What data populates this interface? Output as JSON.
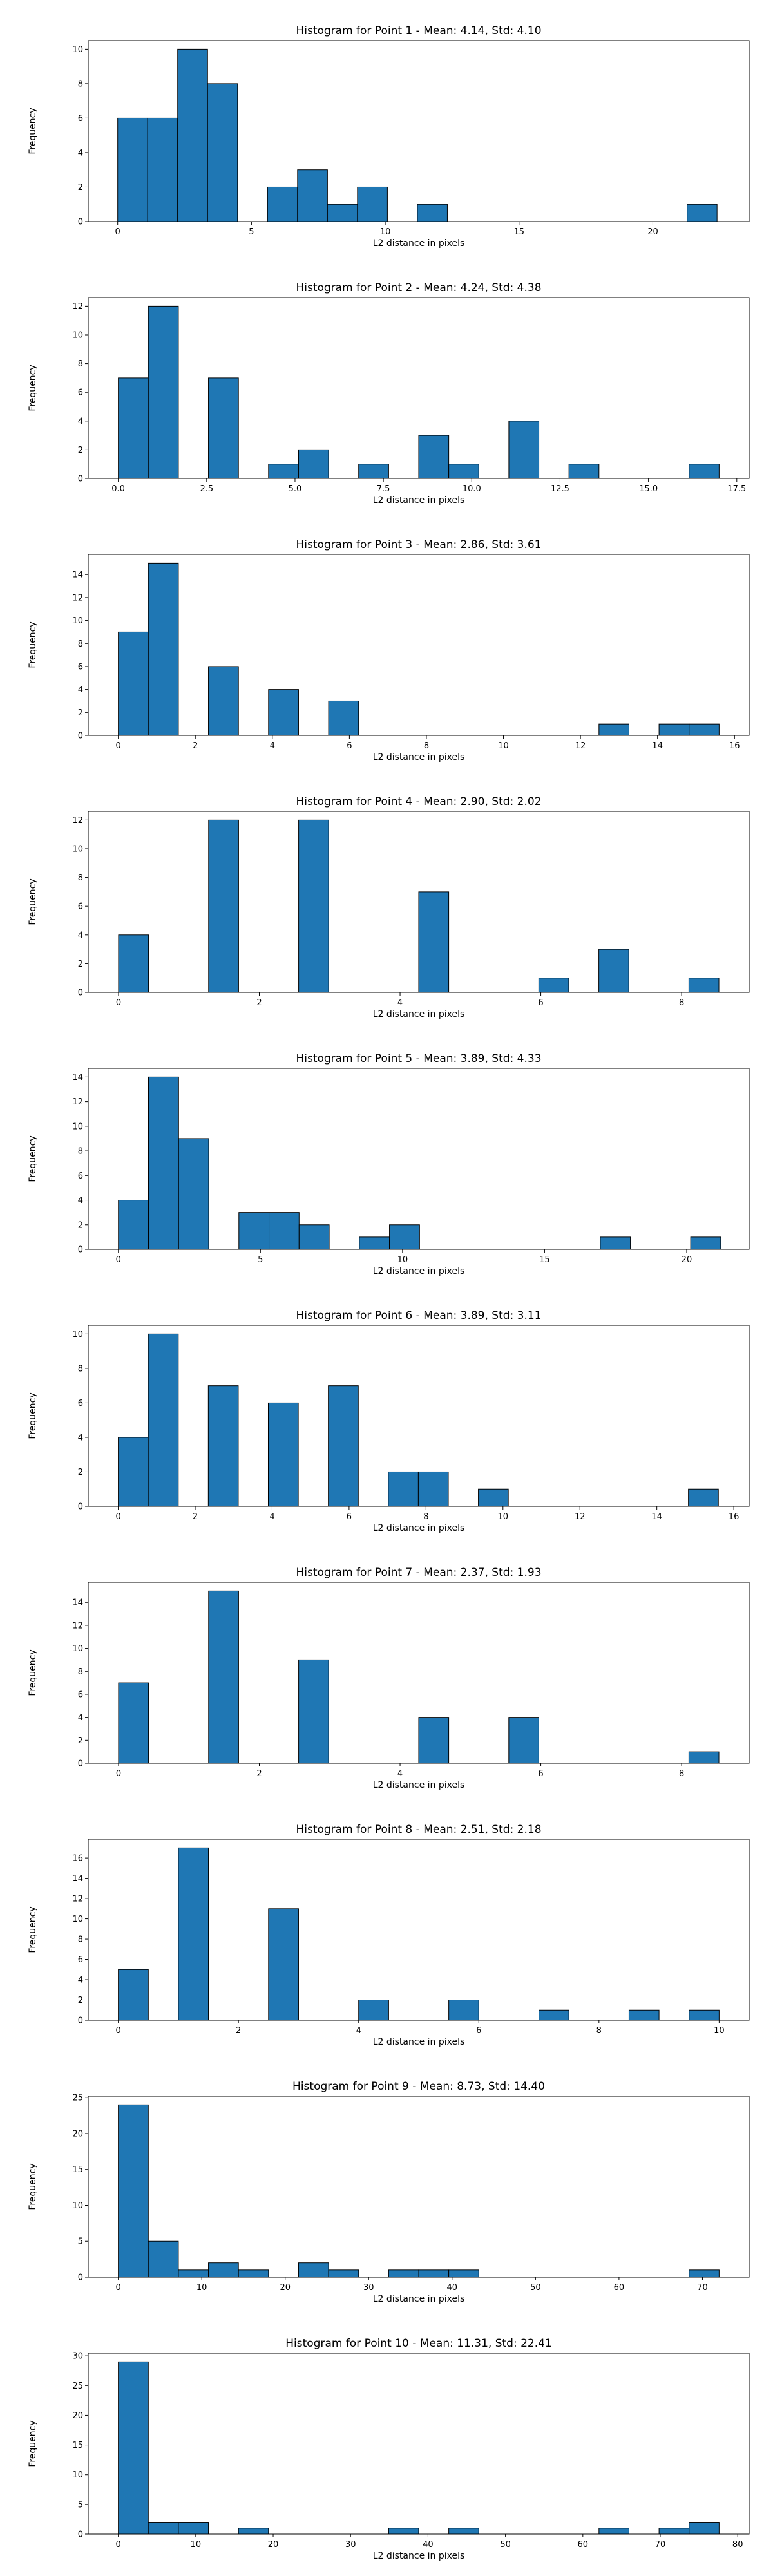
{
  "chart_data": [
    {
      "type": "bar",
      "title": "Histogram for Point 1 - Mean: 4.14, Std: 4.10",
      "xlabel": "L2 distance in pixels",
      "ylabel": "Frequency",
      "xlim": [
        -1.1,
        23.6
      ],
      "ylim": [
        0,
        10.5
      ],
      "xticks": [
        0,
        5,
        10,
        15,
        20
      ],
      "xtick_labels": [
        "0",
        "5",
        "10",
        "15",
        "20"
      ],
      "yticks": [
        0,
        2,
        4,
        6,
        8,
        10
      ],
      "ytick_labels": [
        "0",
        "2",
        "4",
        "6",
        "8",
        "10"
      ],
      "bin_edges": [
        0.0,
        1.12,
        2.24,
        3.36,
        4.48,
        5.6,
        6.72,
        7.84,
        8.96,
        10.08,
        11.2,
        12.32,
        13.44,
        14.56,
        15.68,
        16.8,
        17.92,
        19.04,
        20.16,
        21.28,
        22.4
      ],
      "values": [
        6,
        6,
        10,
        8,
        0,
        2,
        3,
        1,
        2,
        0,
        1,
        0,
        0,
        0,
        0,
        0,
        0,
        0,
        0,
        1
      ],
      "color": "#1f77b4"
    },
    {
      "type": "bar",
      "title": "Histogram for Point 2 - Mean: 4.24, Std: 4.38",
      "xlabel": "L2 distance in pixels",
      "ylabel": "Frequency",
      "xlim": [
        -0.85,
        17.85
      ],
      "ylim": [
        0,
        12.6
      ],
      "xticks": [
        0,
        2.5,
        5,
        7.5,
        10,
        12.5,
        15,
        17.5
      ],
      "xtick_labels": [
        "0.0",
        "2.5",
        "5.0",
        "7.5",
        "10.0",
        "12.5",
        "15.0",
        "17.5"
      ],
      "yticks": [
        0,
        2,
        4,
        6,
        8,
        10,
        12
      ],
      "ytick_labels": [
        "0",
        "2",
        "4",
        "6",
        "8",
        "10",
        "12"
      ],
      "bin_edges": [
        0.0,
        0.85,
        1.7,
        2.55,
        3.4,
        4.25,
        5.1,
        5.95,
        6.8,
        7.65,
        8.5,
        9.35,
        10.2,
        11.05,
        11.9,
        12.75,
        13.6,
        14.45,
        15.3,
        16.15,
        17.0
      ],
      "values": [
        7,
        12,
        0,
        7,
        0,
        1,
        2,
        0,
        1,
        0,
        3,
        1,
        0,
        4,
        0,
        1,
        0,
        0,
        0,
        1
      ],
      "color": "#1f77b4"
    },
    {
      "type": "bar",
      "title": "Histogram for Point 3 - Mean: 2.86, Std: 3.61",
      "xlabel": "L2 distance in pixels",
      "ylabel": "Frequency",
      "xlim": [
        -0.78,
        16.38
      ],
      "ylim": [
        0,
        15.75
      ],
      "xticks": [
        0,
        2,
        4,
        6,
        8,
        10,
        12,
        14,
        16
      ],
      "xtick_labels": [
        "0",
        "2",
        "4",
        "6",
        "8",
        "10",
        "12",
        "14",
        "16"
      ],
      "yticks": [
        0,
        2,
        4,
        6,
        8,
        10,
        12,
        14
      ],
      "ytick_labels": [
        "0",
        "2",
        "4",
        "6",
        "8",
        "10",
        "12",
        "14"
      ],
      "bin_edges": [
        0.0,
        0.78,
        1.56,
        2.34,
        3.12,
        3.9,
        4.68,
        5.46,
        6.24,
        7.02,
        7.8,
        8.58,
        9.36,
        10.14,
        10.92,
        11.7,
        12.48,
        13.26,
        14.04,
        14.82,
        15.6
      ],
      "values": [
        9,
        15,
        0,
        6,
        0,
        4,
        0,
        3,
        0,
        0,
        0,
        0,
        0,
        0,
        0,
        0,
        1,
        0,
        1,
        1
      ],
      "color": "#1f77b4"
    },
    {
      "type": "bar",
      "title": "Histogram for Point 4 - Mean: 2.90, Std: 2.02",
      "xlabel": "L2 distance in pixels",
      "ylabel": "Frequency",
      "xlim": [
        -0.43,
        8.96
      ],
      "ylim": [
        0,
        12.6
      ],
      "xticks": [
        0,
        2,
        4,
        6,
        8
      ],
      "xtick_labels": [
        "0",
        "2",
        "4",
        "6",
        "8"
      ],
      "yticks": [
        0,
        2,
        4,
        6,
        8,
        10,
        12
      ],
      "ytick_labels": [
        "0",
        "2",
        "4",
        "6",
        "8",
        "10",
        "12"
      ],
      "bin_edges": [
        0.0,
        0.4265,
        0.853,
        1.2795,
        1.706,
        2.1325,
        2.559,
        2.9855,
        3.412,
        3.8385,
        4.265,
        4.6915,
        5.118,
        5.5445,
        5.971,
        6.3975,
        6.824,
        7.2505,
        7.677,
        8.1035,
        8.53
      ],
      "values": [
        4,
        0,
        0,
        12,
        0,
        0,
        12,
        0,
        0,
        0,
        7,
        0,
        0,
        0,
        1,
        0,
        3,
        0,
        0,
        1
      ],
      "color": "#1f77b4"
    },
    {
      "type": "bar",
      "title": "Histogram for Point 5 - Mean: 3.89, Std: 4.33",
      "xlabel": "L2 distance in pixels",
      "ylabel": "Frequency",
      "xlim": [
        -1.06,
        22.2
      ],
      "ylim": [
        0,
        14.7
      ],
      "xticks": [
        0,
        5,
        10,
        15,
        20
      ],
      "xtick_labels": [
        "0",
        "5",
        "10",
        "15",
        "20"
      ],
      "yticks": [
        0,
        2,
        4,
        6,
        8,
        10,
        12,
        14
      ],
      "ytick_labels": [
        "0",
        "2",
        "4",
        "6",
        "8",
        "10",
        "12",
        "14"
      ],
      "bin_edges": [
        0.0,
        1.06,
        2.12,
        3.18,
        4.24,
        5.3,
        6.36,
        7.42,
        8.48,
        9.54,
        10.6,
        11.66,
        12.72,
        13.78,
        14.84,
        15.9,
        16.96,
        18.02,
        19.08,
        20.14,
        21.2
      ],
      "values": [
        4,
        14,
        9,
        0,
        3,
        3,
        2,
        0,
        1,
        2,
        0,
        0,
        0,
        0,
        0,
        0,
        1,
        0,
        0,
        1
      ],
      "color": "#1f77b4"
    },
    {
      "type": "bar",
      "title": "Histogram for Point 6 - Mean: 3.89, Std: 3.11",
      "xlabel": "L2 distance in pixels",
      "ylabel": "Frequency",
      "xlim": [
        -0.78,
        16.4
      ],
      "ylim": [
        0,
        10.5
      ],
      "xticks": [
        0,
        2,
        4,
        6,
        8,
        10,
        12,
        14,
        16
      ],
      "xtick_labels": [
        "0",
        "2",
        "4",
        "6",
        "8",
        "10",
        "12",
        "14",
        "16"
      ],
      "yticks": [
        0,
        2,
        4,
        6,
        8,
        10
      ],
      "ytick_labels": [
        "0",
        "2",
        "4",
        "6",
        "8",
        "10"
      ],
      "bin_edges": [
        0.0,
        0.78,
        1.56,
        2.34,
        3.12,
        3.9,
        4.68,
        5.46,
        6.24,
        7.02,
        7.8,
        8.58,
        9.36,
        10.14,
        10.92,
        11.7,
        12.48,
        13.26,
        14.04,
        14.82,
        15.6
      ],
      "values": [
        4,
        10,
        0,
        7,
        0,
        6,
        0,
        7,
        0,
        2,
        2,
        0,
        1,
        0,
        0,
        0,
        0,
        0,
        0,
        1
      ],
      "color": "#1f77b4"
    },
    {
      "type": "bar",
      "title": "Histogram for Point 7 - Mean: 2.37, Std: 1.93",
      "xlabel": "L2 distance in pixels",
      "ylabel": "Frequency",
      "xlim": [
        -0.43,
        8.96
      ],
      "ylim": [
        0,
        15.75
      ],
      "xticks": [
        0,
        2,
        4,
        6,
        8
      ],
      "xtick_labels": [
        "0",
        "2",
        "4",
        "6",
        "8"
      ],
      "yticks": [
        0,
        2,
        4,
        6,
        8,
        10,
        12,
        14
      ],
      "ytick_labels": [
        "0",
        "2",
        "4",
        "6",
        "8",
        "10",
        "12",
        "14"
      ],
      "bin_edges": [
        0.0,
        0.4265,
        0.853,
        1.2795,
        1.706,
        2.1325,
        2.559,
        2.9855,
        3.412,
        3.8385,
        4.265,
        4.6915,
        5.118,
        5.5445,
        5.971,
        6.3975,
        6.824,
        7.2505,
        7.677,
        8.1035,
        8.53
      ],
      "values": [
        7,
        0,
        0,
        15,
        0,
        0,
        9,
        0,
        0,
        0,
        4,
        0,
        0,
        4,
        0,
        0,
        0,
        0,
        0,
        1
      ],
      "color": "#1f77b4"
    },
    {
      "type": "bar",
      "title": "Histogram for Point 8 - Mean: 2.51, Std: 2.18",
      "xlabel": "L2 distance in pixels",
      "ylabel": "Frequency",
      "xlim": [
        -0.5,
        10.5
      ],
      "ylim": [
        0,
        17.85
      ],
      "xticks": [
        0,
        2,
        4,
        6,
        8,
        10
      ],
      "xtick_labels": [
        "0",
        "2",
        "4",
        "6",
        "8",
        "10"
      ],
      "yticks": [
        0,
        2,
        4,
        6,
        8,
        10,
        12,
        14,
        16
      ],
      "ytick_labels": [
        "0",
        "2",
        "4",
        "6",
        "8",
        "10",
        "12",
        "14",
        "16"
      ],
      "bin_edges": [
        0.0,
        0.5,
        1.0,
        1.5,
        2.0,
        2.5,
        3.0,
        3.5,
        4.0,
        4.5,
        5.0,
        5.5,
        6.0,
        6.5,
        7.0,
        7.5,
        8.0,
        8.5,
        9.0,
        9.5,
        10.0
      ],
      "values": [
        5,
        0,
        17,
        0,
        0,
        11,
        0,
        0,
        2,
        0,
        0,
        2,
        0,
        0,
        1,
        0,
        0,
        1,
        0,
        1
      ],
      "color": "#1f77b4"
    },
    {
      "type": "bar",
      "title": "Histogram for Point 9 - Mean: 8.73, Std: 14.40",
      "xlabel": "L2 distance in pixels",
      "ylabel": "Frequency",
      "xlim": [
        -3.6,
        75.6
      ],
      "ylim": [
        0,
        25.2
      ],
      "xticks": [
        0,
        10,
        20,
        30,
        40,
        50,
        60,
        70
      ],
      "xtick_labels": [
        "0",
        "10",
        "20",
        "30",
        "40",
        "50",
        "60",
        "70"
      ],
      "yticks": [
        0,
        5,
        10,
        15,
        20,
        25
      ],
      "ytick_labels": [
        "0",
        "5",
        "10",
        "15",
        "20",
        "25"
      ],
      "bin_edges": [
        0.0,
        3.6,
        7.2,
        10.8,
        14.4,
        18.0,
        21.6,
        25.2,
        28.8,
        32.4,
        36.0,
        39.6,
        43.2,
        46.8,
        50.4,
        54.0,
        57.6,
        61.2,
        64.8,
        68.4,
        72.0
      ],
      "values": [
        24,
        5,
        1,
        2,
        1,
        0,
        2,
        1,
        0,
        1,
        1,
        1,
        0,
        0,
        0,
        0,
        0,
        0,
        0,
        1
      ],
      "color": "#1f77b4"
    },
    {
      "type": "bar",
      "title": "Histogram for Point 10 - Mean: 11.31, Std: 22.41",
      "xlabel": "L2 distance in pixels",
      "ylabel": "Frequency",
      "xlim": [
        -3.88,
        81.48
      ],
      "ylim": [
        0,
        30.45
      ],
      "xticks": [
        0,
        10,
        20,
        30,
        40,
        50,
        60,
        70,
        80
      ],
      "xtick_labels": [
        "0",
        "10",
        "20",
        "30",
        "40",
        "50",
        "60",
        "70",
        "80"
      ],
      "yticks": [
        0,
        5,
        10,
        15,
        20,
        25,
        30
      ],
      "ytick_labels": [
        "0",
        "5",
        "10",
        "15",
        "20",
        "25",
        "30"
      ],
      "bin_edges": [
        0.0,
        3.88,
        7.76,
        11.64,
        15.52,
        19.4,
        23.28,
        27.16,
        31.04,
        34.92,
        38.8,
        42.68,
        46.56,
        50.44,
        54.32,
        58.2,
        62.08,
        65.96,
        69.84,
        73.72,
        77.6
      ],
      "values": [
        29,
        2,
        2,
        0,
        1,
        0,
        0,
        0,
        0,
        1,
        0,
        1,
        0,
        0,
        0,
        0,
        1,
        0,
        1,
        2
      ],
      "color": "#1f77b4"
    }
  ]
}
